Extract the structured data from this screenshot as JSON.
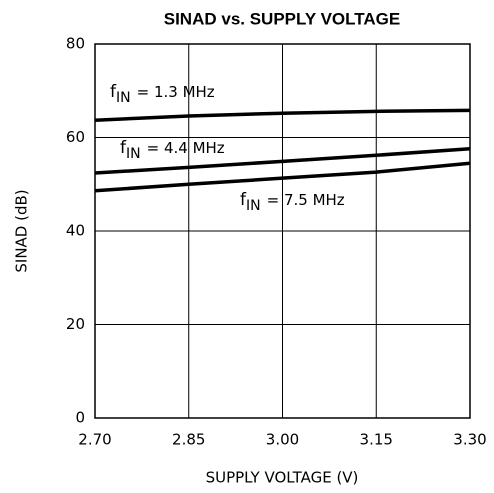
{
  "chart_data": {
    "type": "line",
    "title": "SINAD vs. SUPPLY VOLTAGE",
    "x_label": "SUPPLY VOLTAGE (V)",
    "y_label": "SINAD (dB)",
    "x": [
      2.7,
      2.85,
      3.0,
      3.15,
      3.3
    ],
    "series": [
      {
        "name": "f",
        "name_sub": "IN",
        "name_rest": "= 1.3 MHz",
        "color": "#000000",
        "values": [
          63.7,
          64.6,
          65.2,
          65.6,
          65.8
        ]
      },
      {
        "name": "f",
        "name_sub": "IN",
        "name_rest": "= 4.4 MHz",
        "color": "#000000",
        "values": [
          52.4,
          53.6,
          54.9,
          56.2,
          57.6
        ]
      },
      {
        "name": "f",
        "name_sub": "IN",
        "name_rest": "= 7.5 MHz",
        "color": "#000000",
        "values": [
          48.6,
          50.0,
          51.3,
          52.6,
          54.5
        ]
      }
    ],
    "xlim": [
      2.7,
      3.3
    ],
    "xticks": [
      {
        "value": 2.7,
        "label": "2.70"
      },
      2.85,
      {
        "value": 3.0,
        "label": "3.00"
      },
      3.15,
      {
        "value": 3.3,
        "label": "3.30"
      }
    ],
    "ylim": [
      0,
      80
    ],
    "yticks": [
      0,
      20,
      40,
      60,
      80
    ],
    "grid": true
  }
}
